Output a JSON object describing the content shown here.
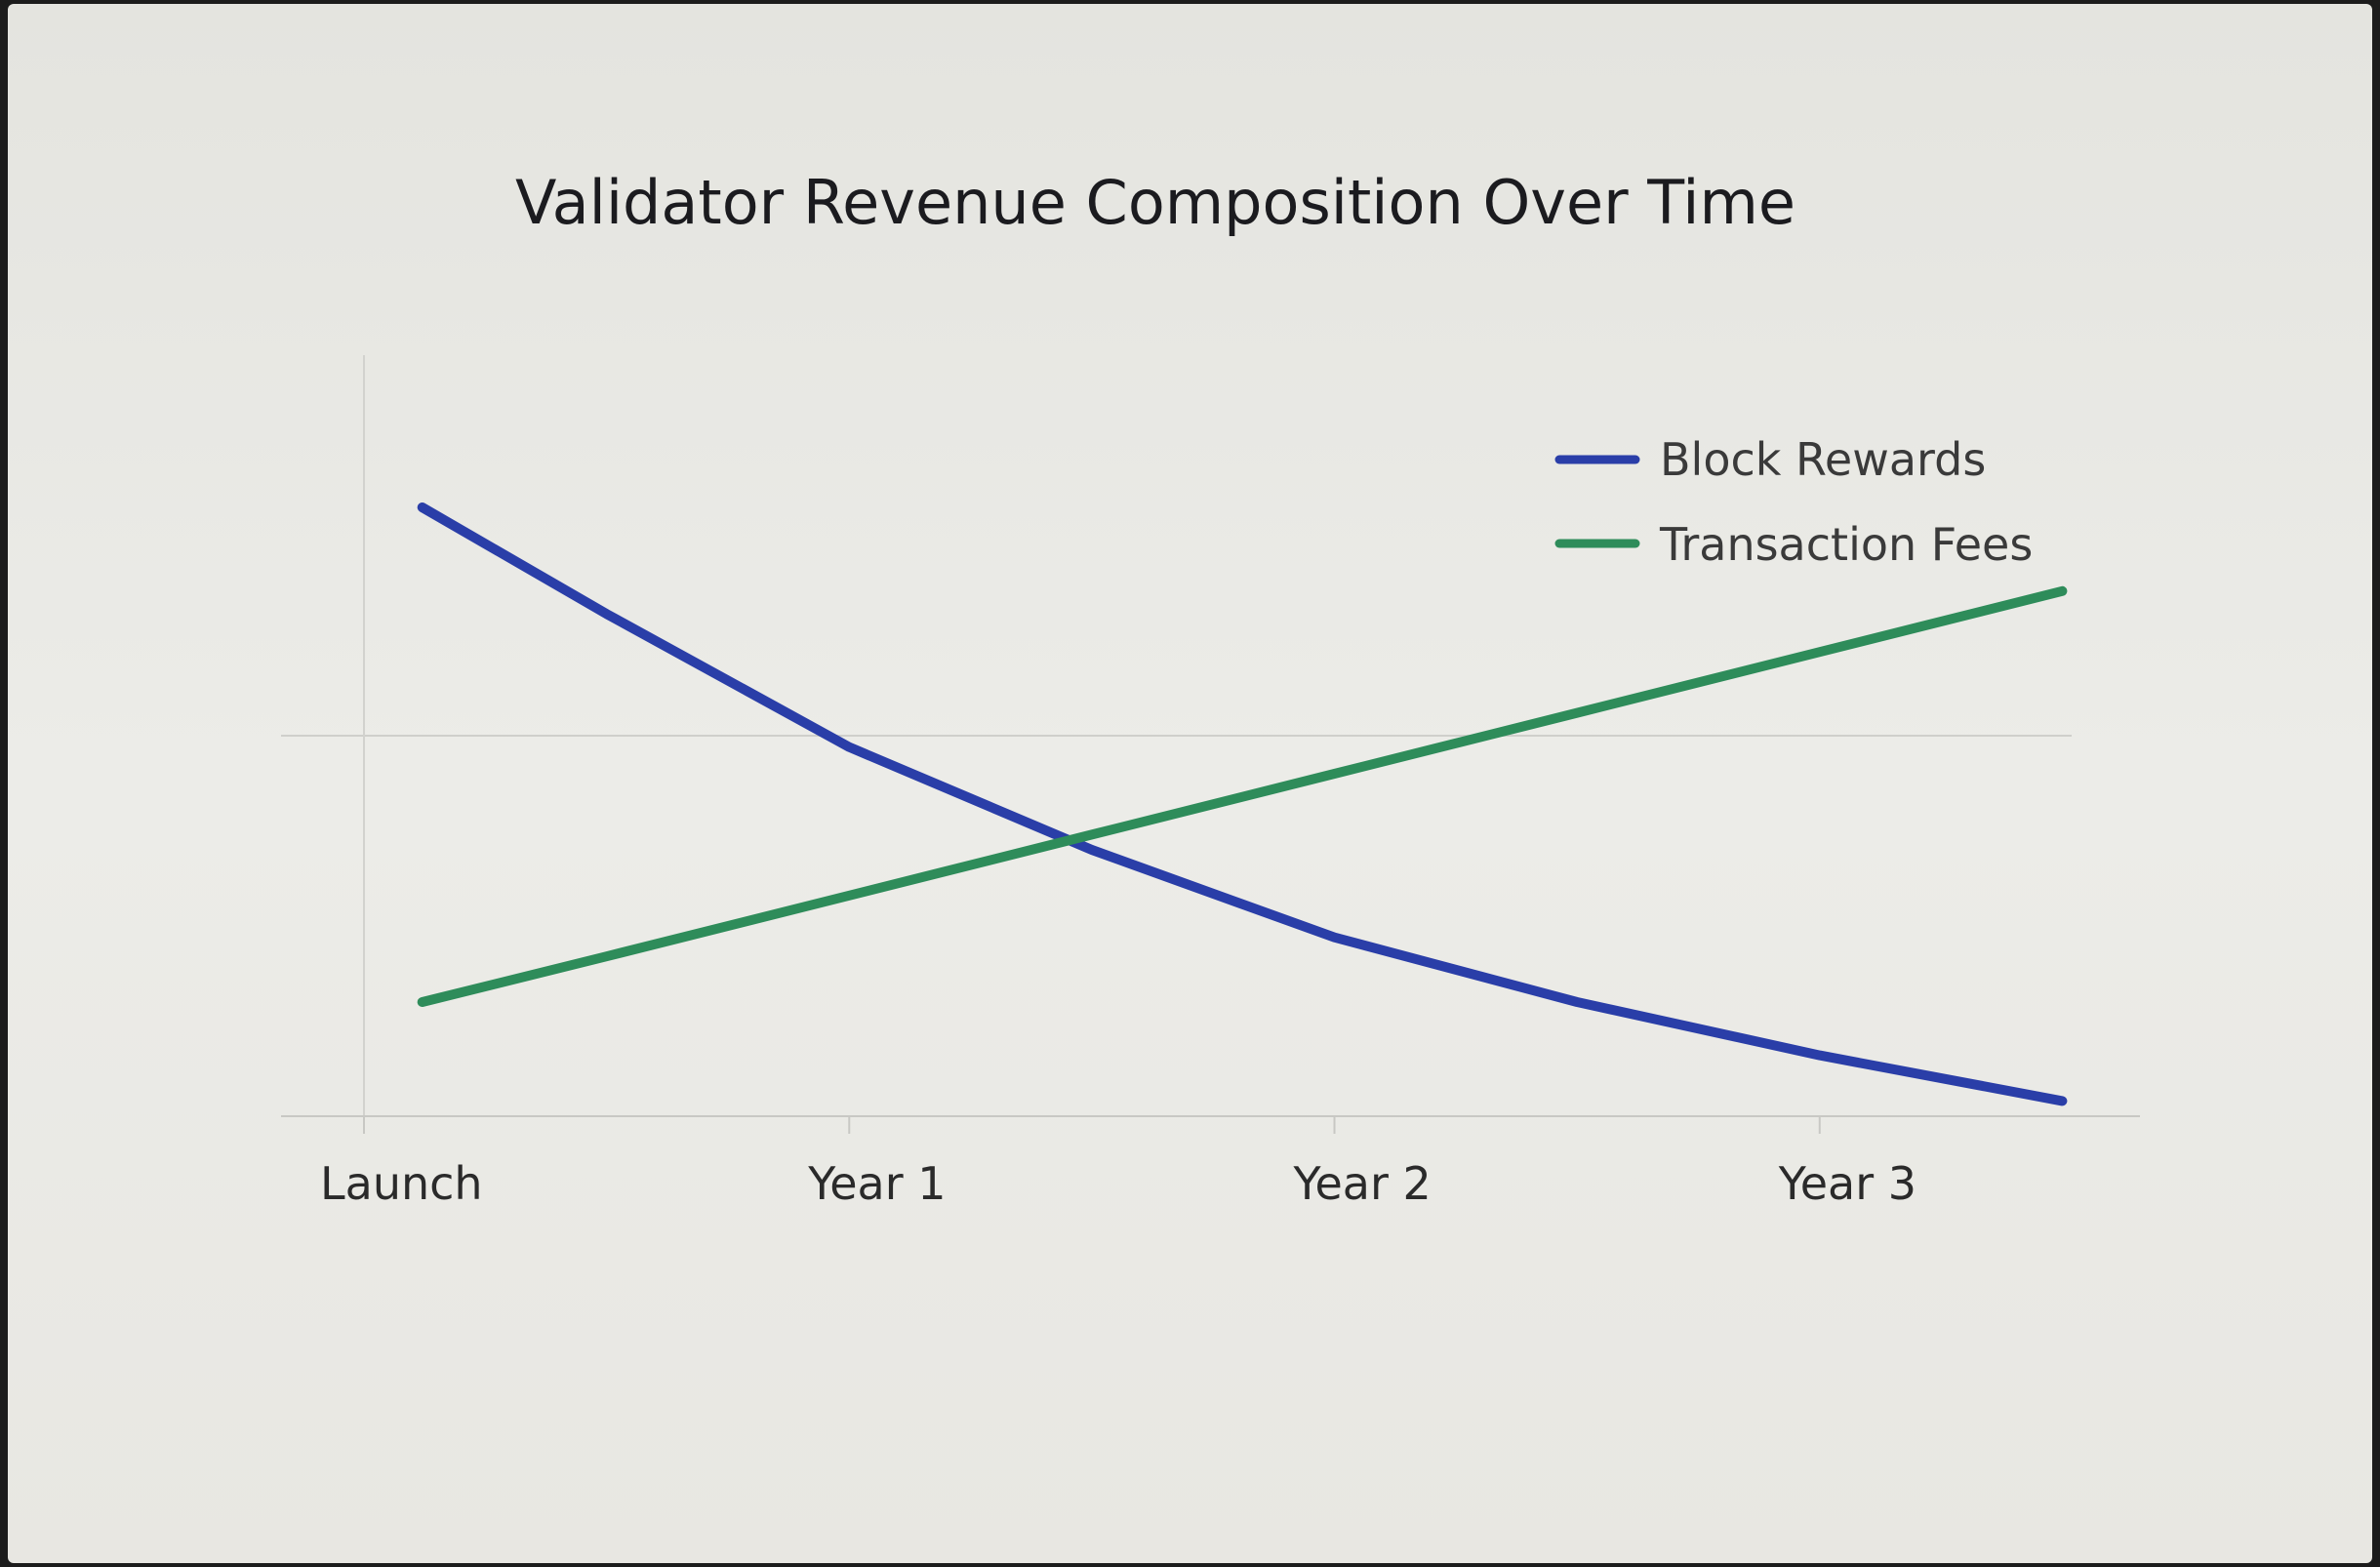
{
  "chart_data": {
    "type": "line",
    "title": "Validator Revenue Composition Over Time",
    "xlabel": "",
    "ylabel": "",
    "categories": [
      "Launch",
      "Year 1",
      "Year 2",
      "Year 3"
    ],
    "x": [
      0.12,
      0.5,
      1.0,
      1.5,
      2.0,
      2.5,
      3.0,
      3.5
    ],
    "xlim": [
      0,
      3.65
    ],
    "ylim": [
      0,
      100
    ],
    "grid": true,
    "legend": "top-right",
    "series": [
      {
        "name": "Block Rewards",
        "color": "#2a3ea8",
        "values": [
          80,
          66,
          48.5,
          35,
          23.5,
          15,
          8,
          2
        ]
      },
      {
        "name": "Transaction Fees",
        "color": "#2e8c5a",
        "values": [
          15,
          21,
          29,
          37,
          45,
          53,
          61,
          69
        ]
      }
    ]
  }
}
